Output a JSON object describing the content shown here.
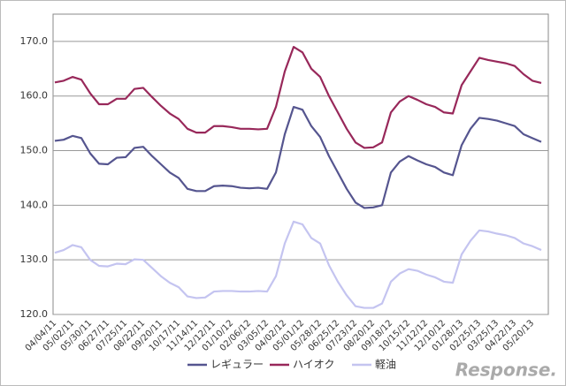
{
  "chart_data": {
    "type": "line",
    "categories": [
      "04/04/11",
      null,
      "05/02/11",
      null,
      "05/30/11",
      null,
      "06/27/11",
      null,
      "07/25/11",
      null,
      "08/22/11",
      null,
      "09/20/11",
      null,
      "10/17/11",
      null,
      "11/14/11",
      null,
      "12/12/11",
      null,
      "01/10/12",
      null,
      "02/06/12",
      null,
      "03/05/12",
      null,
      "04/02/12",
      null,
      "05/01/12",
      null,
      "05/28/12",
      null,
      "06/25/12",
      null,
      "07/23/12",
      null,
      "08/20/12",
      null,
      "09/18/12",
      null,
      "10/15/12",
      null,
      "11/12/12",
      null,
      "12/10/12",
      null,
      "01/28/13",
      null,
      "02/25/13",
      null,
      "03/25/13",
      null,
      "04/22/13",
      null,
      "05/20/13",
      null
    ],
    "series": [
      {
        "name": "レギュラー",
        "color": "#55558f",
        "values": [
          151.8,
          152.0,
          152.7,
          152.3,
          149.5,
          147.6,
          147.5,
          148.7,
          148.8,
          150.5,
          150.7,
          149.0,
          147.5,
          146.0,
          145.0,
          143.0,
          142.6,
          142.6,
          143.5,
          143.6,
          143.5,
          143.2,
          143.1,
          143.2,
          143.0,
          146,
          153,
          158,
          157.5,
          154.5,
          152.5,
          149,
          146,
          143,
          140.5,
          139.5,
          139.6,
          140,
          146,
          148,
          149,
          148.2,
          147.5,
          147,
          146,
          145.5,
          151,
          154,
          156,
          155.8,
          155.5,
          155,
          154.5,
          153,
          152.3,
          151.6
        ]
      },
      {
        "name": "ハイオク",
        "color": "#98285a",
        "values": [
          162.5,
          162.8,
          163.5,
          163,
          160.5,
          158.5,
          158.5,
          159.5,
          159.5,
          161.3,
          161.5,
          159.8,
          158.2,
          156.8,
          155.8,
          154,
          153.3,
          153.3,
          154.5,
          154.5,
          154.3,
          154,
          154,
          153.9,
          154,
          158,
          164.5,
          169,
          168,
          165,
          163.5,
          160,
          157,
          154,
          151.5,
          150.5,
          150.6,
          151.5,
          157,
          159,
          160,
          159.3,
          158.5,
          158,
          157,
          156.8,
          162,
          164.5,
          167,
          166.6,
          166.3,
          166,
          165.5,
          164,
          162.8,
          162.4
        ]
      },
      {
        "name": "軽油",
        "color": "#c4c4f0",
        "values": [
          131.3,
          131.8,
          132.7,
          132.3,
          130,
          128.9,
          128.8,
          129.3,
          129.2,
          130.1,
          130,
          128.5,
          127,
          125.8,
          125,
          123.3,
          123,
          123.1,
          124.2,
          124.3,
          124.3,
          124.2,
          124.2,
          124.3,
          124.2,
          127,
          133,
          137,
          136.5,
          134,
          133,
          129,
          126,
          123.5,
          121.5,
          121.2,
          121.2,
          122,
          126,
          127.5,
          128.3,
          128,
          127.3,
          126.8,
          126,
          125.8,
          131,
          133.5,
          135.4,
          135.2,
          134.8,
          134.5,
          134,
          133,
          132.5,
          131.8
        ]
      }
    ],
    "ylim": [
      120,
      175
    ],
    "yticks": [
      {
        "value": 120,
        "label": "120.0"
      },
      {
        "value": 130,
        "label": "130.0"
      },
      {
        "value": 140,
        "label": "140.0"
      },
      {
        "value": 150,
        "label": "150.0"
      },
      {
        "value": 160,
        "label": "160.0"
      },
      {
        "value": 170,
        "label": "170.0"
      }
    ],
    "grid": true,
    "legend": "bottom",
    "watermark": "Response."
  }
}
